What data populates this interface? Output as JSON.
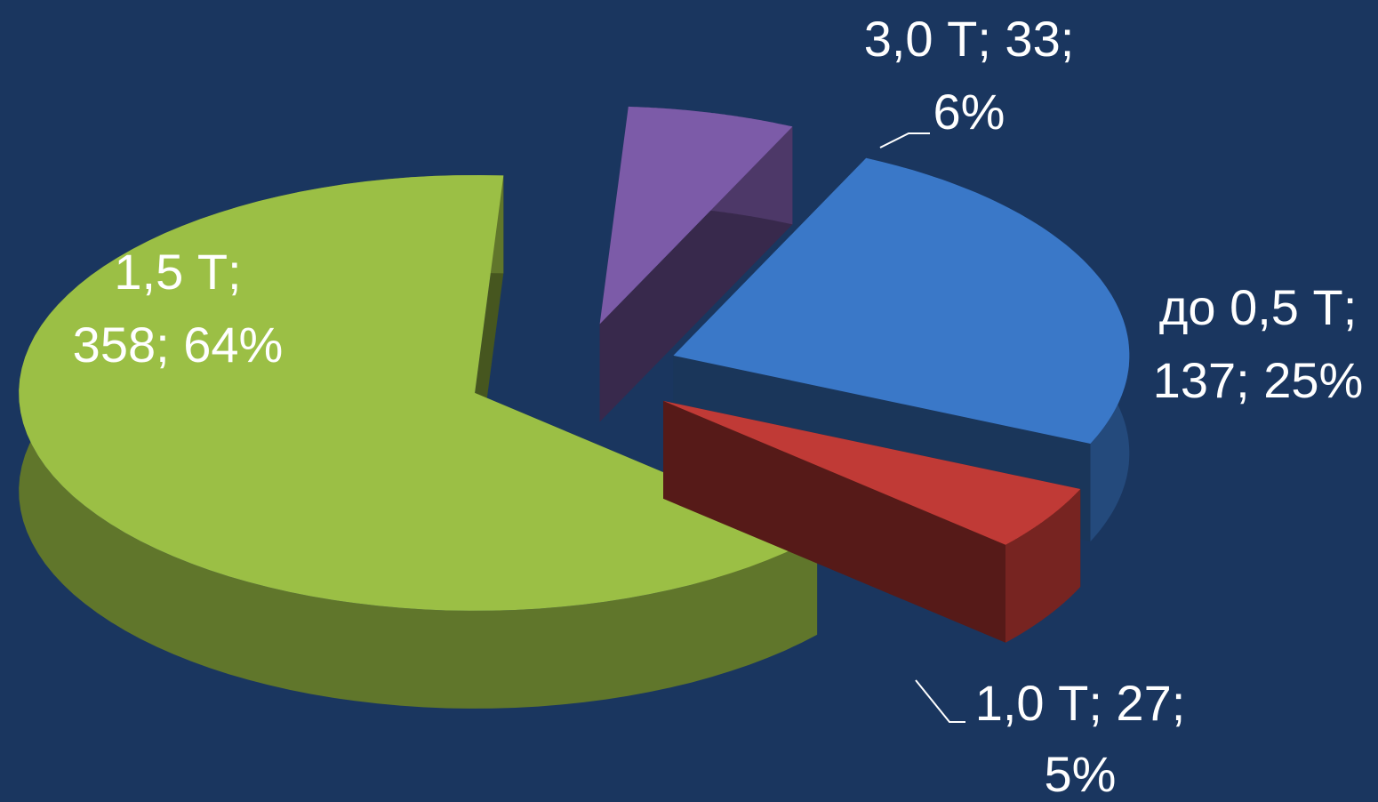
{
  "chart_data": {
    "type": "pie",
    "values": [
      137,
      27,
      358,
      33
    ],
    "value_labels": [
      [
        "до 0,5 Т;",
        "137; 25%"
      ],
      [
        "1,0 Т; 27;",
        "5%"
      ],
      [
        "1,5 Т;",
        "358; 64%"
      ],
      [
        "3,0 Т; 33;",
        "6%"
      ]
    ],
    "colors": [
      "#3a78c8",
      "#c03a36",
      "#9bbf45",
      "#7c5ba8"
    ]
  }
}
